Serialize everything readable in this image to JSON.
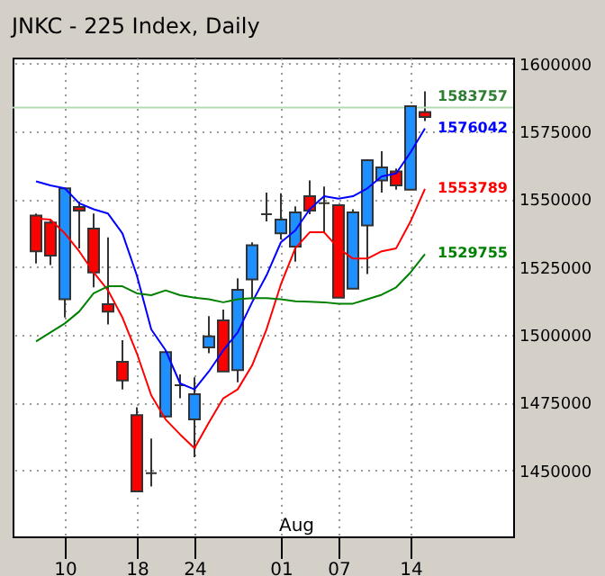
{
  "chart_data": {
    "type": "candlestick",
    "title": "JNKC - 225 Index, Daily",
    "categories": [
      null,
      null,
      "10",
      null,
      null,
      null,
      null,
      "18",
      null,
      null,
      null,
      "24",
      null,
      null,
      null,
      null,
      null,
      "01",
      null,
      null,
      null,
      "07",
      null,
      null,
      null,
      null,
      "14",
      null
    ],
    "ohlc": [
      [
        1544000,
        1544700,
        1526300,
        1530800
      ],
      [
        1541400,
        1542500,
        1525700,
        1529200
      ],
      [
        1513100,
        1554000,
        1506400,
        1554000
      ],
      [
        1547100,
        1549100,
        1531900,
        1545800
      ],
      [
        1539200,
        1544700,
        1517500,
        1523000
      ],
      [
        1511300,
        1535900,
        1503800,
        1508600
      ],
      [
        1490100,
        1498000,
        1479900,
        1483200
      ],
      [
        1470400,
        1473300,
        1442300,
        1442300
      ],
      [
        1449000,
        1461800,
        1444100,
        1449000
      ],
      [
        1469900,
        1494300,
        1469500,
        1493600
      ],
      [
        1481400,
        1485400,
        1476600,
        1481400
      ],
      [
        1468800,
        1484300,
        1454900,
        1478100
      ],
      [
        1495400,
        1506900,
        1493200,
        1499400
      ],
      [
        1505300,
        1509300,
        1486500,
        1486500
      ],
      [
        1487000,
        1520800,
        1482500,
        1516600
      ],
      [
        1520400,
        1534100,
        1513100,
        1533000
      ],
      [
        1544500,
        1552400,
        1541800,
        1544500
      ],
      [
        1537400,
        1552200,
        1535200,
        1542500
      ],
      [
        1532500,
        1547400,
        1527000,
        1545100
      ],
      [
        1551100,
        1556900,
        1544500,
        1545800
      ],
      [
        1548500,
        1554700,
        1537400,
        1548500
      ],
      [
        1547800,
        1547800,
        1513700,
        1513700
      ],
      [
        1517000,
        1546300,
        1517000,
        1545100
      ],
      [
        1540300,
        1564400,
        1522400,
        1564400
      ],
      [
        1556900,
        1567700,
        1552400,
        1561700
      ],
      [
        1560200,
        1561300,
        1553500,
        1555100
      ],
      [
        1553500,
        1584300,
        1553500,
        1584300
      ],
      [
        1582100,
        1589800,
        1578800,
        1580300
      ]
    ],
    "colors": [
      "#ff0000",
      "#ff0000",
      "#1e90ff",
      "#ff0000",
      "#ff0000",
      "#ff0000",
      "#ff0000",
      "#ff0000",
      "#333333",
      "#1e90ff",
      "#333333",
      "#1e90ff",
      "#1e90ff",
      "#ff0000",
      "#1e90ff",
      "#1e90ff",
      "#333333",
      "#1e90ff",
      "#1e90ff",
      "#ff0000",
      "#333333",
      "#ff0000",
      "#1e90ff",
      "#1e90ff",
      "#1e90ff",
      "#ff0000",
      "#1e90ff",
      "#ff0000"
    ],
    "series": [
      {
        "type": "line",
        "color": "#0000ff",
        "values": [
          1556600,
          1555100,
          1554000,
          1548500,
          1546300,
          1544700,
          1537400,
          1521900,
          1502000,
          1494300,
          1482100,
          1479900,
          1486500,
          1494300,
          1500900,
          1512000,
          1521900,
          1534100,
          1538500,
          1546300,
          1551100,
          1550200,
          1551100,
          1554000,
          1558400,
          1559500,
          1567300,
          1576042
        ],
        "value_labels": [
          null,
          null,
          null,
          null,
          null,
          null,
          null,
          null,
          null,
          null,
          null,
          null,
          null,
          null,
          null,
          null,
          null,
          null,
          null,
          null,
          null,
          null,
          null,
          null,
          null,
          null,
          null,
          "1576042"
        ]
      },
      {
        "type": "line",
        "color": "#ff0000",
        "values": [
          1542900,
          1542500,
          1537400,
          1530800,
          1523000,
          1516400,
          1506400,
          1493200,
          1477700,
          1468800,
          1463300,
          1458200,
          1467700,
          1476600,
          1479900,
          1488700,
          1502000,
          1518600,
          1531900,
          1537800,
          1537800,
          1531900,
          1528100,
          1528100,
          1530800,
          1531900,
          1541800,
          1553789
        ],
        "value_labels": [
          null,
          null,
          null,
          null,
          null,
          null,
          null,
          null,
          null,
          null,
          null,
          null,
          null,
          null,
          null,
          null,
          null,
          null,
          null,
          null,
          null,
          null,
          null,
          null,
          null,
          null,
          null,
          "1553789"
        ]
      },
      {
        "type": "line",
        "color": "#008000",
        "values": [
          1497600,
          1500900,
          1504200,
          1508600,
          1515300,
          1517900,
          1517900,
          1515300,
          1514600,
          1516400,
          1514600,
          1513700,
          1513100,
          1512000,
          1513100,
          1513500,
          1513500,
          1513100,
          1512400,
          1512200,
          1512000,
          1511500,
          1511500,
          1513100,
          1514800,
          1517500,
          1523000,
          1529755
        ],
        "value_labels": [
          null,
          null,
          null,
          null,
          null,
          null,
          null,
          null,
          null,
          null,
          null,
          null,
          null,
          null,
          null,
          null,
          null,
          null,
          null,
          null,
          null,
          null,
          null,
          null,
          null,
          null,
          null,
          "1529755"
        ]
      }
    ],
    "ref_lines": [
      {
        "axis": "y",
        "value": 1583757,
        "label": "1583757",
        "color": "#b4dcb4"
      }
    ],
    "annotations": [
      "Aug"
    ],
    "ylim": [
      1425700,
      1602200
    ],
    "yticks": [
      1450000,
      1475000,
      1500000,
      1525000,
      1550000,
      1575000,
      1600000
    ],
    "grid": true
  }
}
